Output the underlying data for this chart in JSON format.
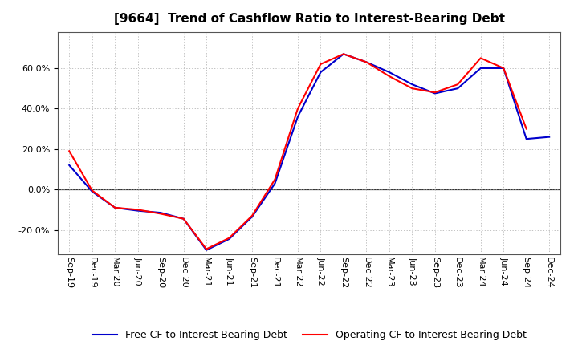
{
  "title": "[9664]  Trend of Cashflow Ratio to Interest-Bearing Debt",
  "x_labels": [
    "Sep-19",
    "Dec-19",
    "Mar-20",
    "Jun-20",
    "Sep-20",
    "Dec-20",
    "Mar-21",
    "Jun-21",
    "Sep-21",
    "Dec-21",
    "Mar-22",
    "Jun-22",
    "Sep-22",
    "Dec-22",
    "Mar-23",
    "Jun-23",
    "Sep-23",
    "Dec-23",
    "Mar-24",
    "Jun-24",
    "Sep-24",
    "Dec-24"
  ],
  "operating_cf": [
    0.19,
    -0.005,
    -0.09,
    -0.1,
    -0.12,
    -0.145,
    -0.295,
    -0.24,
    -0.13,
    0.05,
    0.4,
    0.62,
    0.67,
    0.63,
    0.56,
    0.5,
    0.48,
    0.52,
    0.65,
    0.6,
    0.3,
    null
  ],
  "free_cf": [
    0.12,
    -0.01,
    -0.09,
    -0.105,
    -0.115,
    -0.145,
    -0.3,
    -0.245,
    -0.135,
    0.03,
    0.36,
    0.58,
    0.67,
    0.63,
    0.58,
    0.52,
    0.475,
    0.5,
    0.6,
    0.6,
    0.25,
    0.26
  ],
  "operating_color": "#ff0000",
  "free_color": "#0000cc",
  "ylim": [
    -0.32,
    0.78
  ],
  "yticks": [
    -0.2,
    0.0,
    0.2,
    0.4,
    0.6
  ],
  "background_color": "#ffffff",
  "grid_color": "#aaaaaa",
  "legend_op": "Operating CF to Interest-Bearing Debt",
  "legend_free": "Free CF to Interest-Bearing Debt",
  "title_fontsize": 11,
  "label_fontsize": 8,
  "legend_fontsize": 9
}
